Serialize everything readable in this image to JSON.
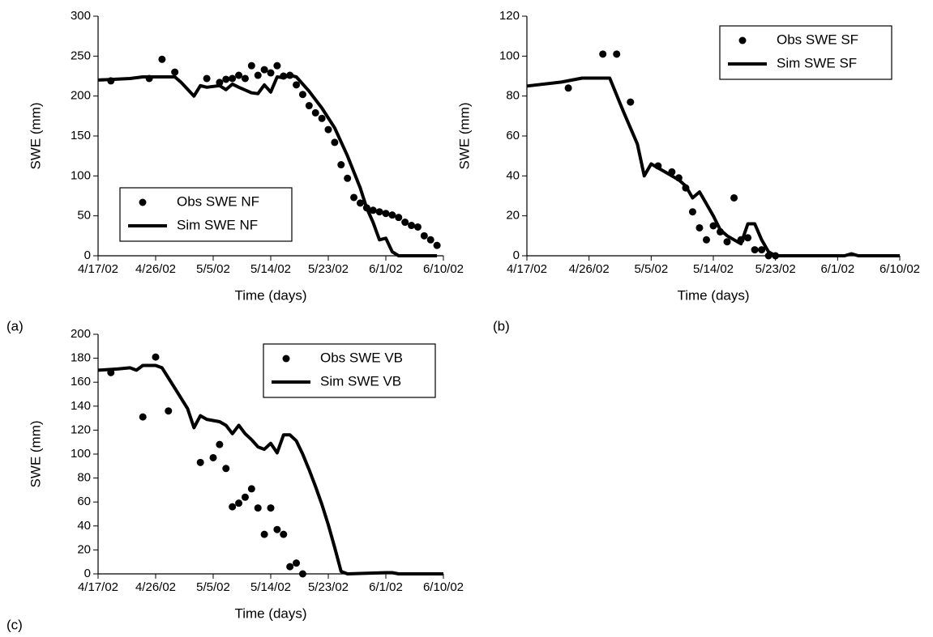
{
  "chart_data": [
    {
      "type": "line",
      "label": "(a)",
      "xlabel": "Time (days)",
      "ylabel": "SWE (mm)",
      "legend": "lower left",
      "xlim": [
        "2002-04-17",
        "2002-06-10"
      ],
      "ylim": [
        0,
        300
      ],
      "xticks": [
        {
          "value": "2002-04-17",
          "label": "4/17/02"
        },
        {
          "value": "2002-04-26",
          "label": "4/26/02"
        },
        {
          "value": "2002-05-05",
          "label": "5/5/02"
        },
        {
          "value": "2002-05-14",
          "label": "5/14/02"
        },
        {
          "value": "2002-05-23",
          "label": "5/23/02"
        },
        {
          "value": "2002-06-01",
          "label": "6/1/02"
        },
        {
          "value": "2002-06-10",
          "label": "6/10/02"
        }
      ],
      "yticks": [
        0,
        50,
        100,
        150,
        200,
        250,
        300
      ],
      "series": [
        {
          "name": "Obs SWE NF",
          "color": "#000000",
          "style": "markers",
          "x": [
            "2002-04-19",
            "2002-04-25",
            "2002-04-27",
            "2002-04-29",
            "2002-05-04",
            "2002-05-06",
            "2002-05-07",
            "2002-05-08",
            "2002-05-09",
            "2002-05-10",
            "2002-05-11",
            "2002-05-12",
            "2002-05-13",
            "2002-05-14",
            "2002-05-15",
            "2002-05-16",
            "2002-05-17",
            "2002-05-18",
            "2002-05-19",
            "2002-05-20",
            "2002-05-21",
            "2002-05-22",
            "2002-05-23",
            "2002-05-24",
            "2002-05-25",
            "2002-05-26",
            "2002-05-27",
            "2002-05-28",
            "2002-05-29",
            "2002-05-30",
            "2002-05-31",
            "2002-06-01",
            "2002-06-02",
            "2002-06-03",
            "2002-06-04",
            "2002-06-05",
            "2002-06-06",
            "2002-06-07",
            "2002-06-08",
            "2002-06-09"
          ],
          "values": [
            219,
            222,
            246,
            230,
            222,
            217,
            221,
            222,
            226,
            222,
            238,
            226,
            233,
            229,
            238,
            225,
            226,
            214,
            202,
            188,
            179,
            172,
            158,
            142,
            114,
            97,
            73,
            66,
            60,
            57,
            55,
            53,
            51,
            48,
            42,
            38,
            36,
            25,
            20,
            13
          ]
        },
        {
          "name": "Sim SWE NF",
          "color": "#000000",
          "style": "line",
          "x": [
            "2002-04-17",
            "2002-04-22",
            "2002-04-24",
            "2002-04-29",
            "2002-04-30",
            "2002-05-02",
            "2002-05-03",
            "2002-05-04",
            "2002-05-06",
            "2002-05-07",
            "2002-05-08",
            "2002-05-09",
            "2002-05-11",
            "2002-05-12",
            "2002-05-13",
            "2002-05-14",
            "2002-05-15",
            "2002-05-16",
            "2002-05-17",
            "2002-05-18",
            "2002-05-20",
            "2002-05-22",
            "2002-05-24",
            "2002-05-26",
            "2002-05-28",
            "2002-05-29",
            "2002-05-30",
            "2002-05-31",
            "2002-06-01",
            "2002-06-02",
            "2002-06-03",
            "2002-06-06",
            "2002-06-09"
          ],
          "values": [
            220,
            222,
            224,
            224,
            217,
            200,
            213,
            211,
            213,
            208,
            215,
            211,
            204,
            203,
            214,
            205,
            224,
            223,
            226,
            224,
            206,
            185,
            160,
            125,
            85,
            60,
            42,
            20,
            22,
            5,
            0,
            0,
            0
          ]
        }
      ]
    },
    {
      "type": "line",
      "label": "(b)",
      "xlabel": "Time (days)",
      "ylabel": "SWE (mm)",
      "legend": "upper right",
      "xlim": [
        "2002-04-17",
        "2002-06-10"
      ],
      "ylim": [
        0,
        120
      ],
      "xticks": [
        {
          "value": "2002-04-17",
          "label": "4/17/02"
        },
        {
          "value": "2002-04-26",
          "label": "4/26/02"
        },
        {
          "value": "2002-05-05",
          "label": "5/5/02"
        },
        {
          "value": "2002-05-14",
          "label": "5/14/02"
        },
        {
          "value": "2002-05-23",
          "label": "5/23/02"
        },
        {
          "value": "2002-06-01",
          "label": "6/1/02"
        },
        {
          "value": "2002-06-10",
          "label": "6/10/02"
        }
      ],
      "yticks": [
        0,
        20,
        40,
        60,
        80,
        100,
        120
      ],
      "series": [
        {
          "name": "Obs SWE SF",
          "color": "#000000",
          "style": "markers",
          "x": [
            "2002-04-23",
            "2002-04-28",
            "2002-04-30",
            "2002-05-02",
            "2002-05-06",
            "2002-05-08",
            "2002-05-09",
            "2002-05-10",
            "2002-05-11",
            "2002-05-12",
            "2002-05-13",
            "2002-05-14",
            "2002-05-15",
            "2002-05-16",
            "2002-05-17",
            "2002-05-18",
            "2002-05-19",
            "2002-05-20",
            "2002-05-21",
            "2002-05-22",
            "2002-05-23"
          ],
          "values": [
            84,
            101,
            101,
            77,
            45,
            42,
            39,
            34,
            22,
            14,
            8,
            15,
            12,
            7,
            29,
            8,
            9,
            3,
            3,
            0,
            0
          ]
        },
        {
          "name": "Sim SWE SF",
          "color": "#000000",
          "style": "line",
          "x": [
            "2002-04-17",
            "2002-04-22",
            "2002-04-25",
            "2002-04-29",
            "2002-05-01",
            "2002-05-03",
            "2002-05-04",
            "2002-05-05",
            "2002-05-06",
            "2002-05-07",
            "2002-05-09",
            "2002-05-10",
            "2002-05-11",
            "2002-05-12",
            "2002-05-13",
            "2002-05-14",
            "2002-05-15",
            "2002-05-16",
            "2002-05-17",
            "2002-05-18",
            "2002-05-19",
            "2002-05-20",
            "2002-05-21",
            "2002-05-22",
            "2002-05-23",
            "2002-06-02",
            "2002-06-03",
            "2002-06-04",
            "2002-06-10"
          ],
          "values": [
            85,
            87,
            89,
            89,
            72,
            56,
            40,
            46,
            44,
            42,
            38,
            35,
            29,
            32,
            26,
            20,
            13,
            10,
            8,
            6,
            16,
            16,
            8,
            2,
            0,
            0,
            1,
            0,
            0
          ]
        }
      ]
    },
    {
      "type": "line",
      "label": "(c)",
      "xlabel": "Time (days)",
      "ylabel": "SWE (mm)",
      "legend": "upper right",
      "xlim": [
        "2002-04-17",
        "2002-06-10"
      ],
      "ylim": [
        0,
        200
      ],
      "xticks": [
        {
          "value": "2002-04-17",
          "label": "4/17/02"
        },
        {
          "value": "2002-04-26",
          "label": "4/26/02"
        },
        {
          "value": "2002-05-05",
          "label": "5/5/02"
        },
        {
          "value": "2002-05-14",
          "label": "5/14/02"
        },
        {
          "value": "2002-05-23",
          "label": "5/23/02"
        },
        {
          "value": "2002-06-01",
          "label": "6/1/02"
        },
        {
          "value": "2002-06-10",
          "label": "6/10/02"
        }
      ],
      "yticks": [
        0,
        20,
        40,
        60,
        80,
        100,
        120,
        140,
        160,
        180,
        200
      ],
      "series": [
        {
          "name": "Obs SWE VB",
          "color": "#000000",
          "style": "markers",
          "x": [
            "2002-04-19",
            "2002-04-24",
            "2002-04-26",
            "2002-04-28",
            "2002-05-03",
            "2002-05-05",
            "2002-05-06",
            "2002-05-07",
            "2002-05-08",
            "2002-05-09",
            "2002-05-10",
            "2002-05-11",
            "2002-05-12",
            "2002-05-13",
            "2002-05-14",
            "2002-05-15",
            "2002-05-16",
            "2002-05-17",
            "2002-05-18",
            "2002-05-19"
          ],
          "values": [
            168,
            131,
            181,
            136,
            93,
            97,
            108,
            88,
            56,
            59,
            64,
            71,
            55,
            33,
            55,
            37,
            33,
            6,
            9,
            0
          ]
        },
        {
          "name": "Sim SWE VB",
          "color": "#000000",
          "style": "line",
          "x": [
            "2002-04-17",
            "2002-04-20",
            "2002-04-22",
            "2002-04-23",
            "2002-04-24",
            "2002-04-26",
            "2002-04-27",
            "2002-04-29",
            "2002-05-01",
            "2002-05-02",
            "2002-05-03",
            "2002-05-04",
            "2002-05-06",
            "2002-05-07",
            "2002-05-08",
            "2002-05-09",
            "2002-05-10",
            "2002-05-11",
            "2002-05-12",
            "2002-05-13",
            "2002-05-14",
            "2002-05-15",
            "2002-05-16",
            "2002-05-17",
            "2002-05-18",
            "2002-05-19",
            "2002-05-20",
            "2002-05-21",
            "2002-05-22",
            "2002-05-23",
            "2002-05-24",
            "2002-05-25",
            "2002-05-26",
            "2002-06-01",
            "2002-06-02",
            "2002-06-03",
            "2002-06-10"
          ],
          "values": [
            170,
            171,
            172,
            170,
            174,
            174,
            172,
            155,
            138,
            122,
            132,
            129,
            127,
            124,
            117,
            124,
            117,
            112,
            106,
            104,
            109,
            101,
            116,
            116,
            111,
            100,
            87,
            73,
            58,
            41,
            22,
            2,
            0,
            1,
            1,
            0,
            0
          ]
        }
      ]
    }
  ]
}
